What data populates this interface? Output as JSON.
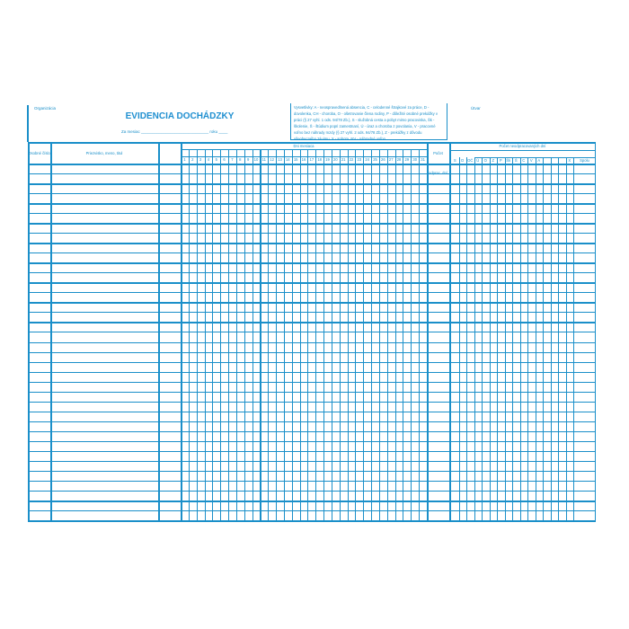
{
  "header": {
    "organization_label": "Organizácia",
    "title": "EVIDENCIA DOCHÁDZKY",
    "month_line": "Za mesiac ______________________________ roku ____",
    "unit_label": "Útvar",
    "legend": "Vysvetlivky: A - neospravedlnená absencia, C - celodenné štrajkové za práce, D - dovolenka, CH - choroba, O - ošetrovanie člena rodiny, P - dôležité osobné prekážky v práci (§ 27 vyhl. 1 ods. 94/78 Zb.), S - služobná cesta a pobyt mimo pracoviska, Šk - školenie, Š - štúdium popri zamestnaní, Ú - úraz a choroba z povolania, V - pracovné voľno bez náhrady mzdy (§ 27 vyhl. 2 ods. 94/78 Zb.), Z - prekážky z dôvodu všeobecného záujmu, X - sobota, NV - náhradné voľno."
  },
  "table": {
    "col_personal_number": "Osobné číslo",
    "col_name": "Priezvisko, meno, titul",
    "col_days_group": "Dni mesiaca",
    "days": [
      "1",
      "2",
      "3",
      "4",
      "5",
      "6",
      "7",
      "8",
      "9",
      "10",
      "11",
      "12",
      "13",
      "14",
      "15",
      "16",
      "17",
      "18",
      "19",
      "20",
      "21",
      "22",
      "23",
      "24",
      "25",
      "26",
      "27",
      "28",
      "29",
      "30",
      "31"
    ],
    "col_worked_days": "Počet odprac. dní",
    "col_not_worked_group": "Počet neodpracovaných dní",
    "not_worked_codes": [
      "S",
      "D",
      "OČ",
      "Ú",
      "O",
      "Z",
      "P",
      "Šk",
      "Š",
      "C",
      "V",
      "A",
      "",
      "",
      "",
      "X",
      "Spolu"
    ]
  },
  "colors": {
    "line": "#1a8fc9",
    "title": "#1f8fd0"
  }
}
